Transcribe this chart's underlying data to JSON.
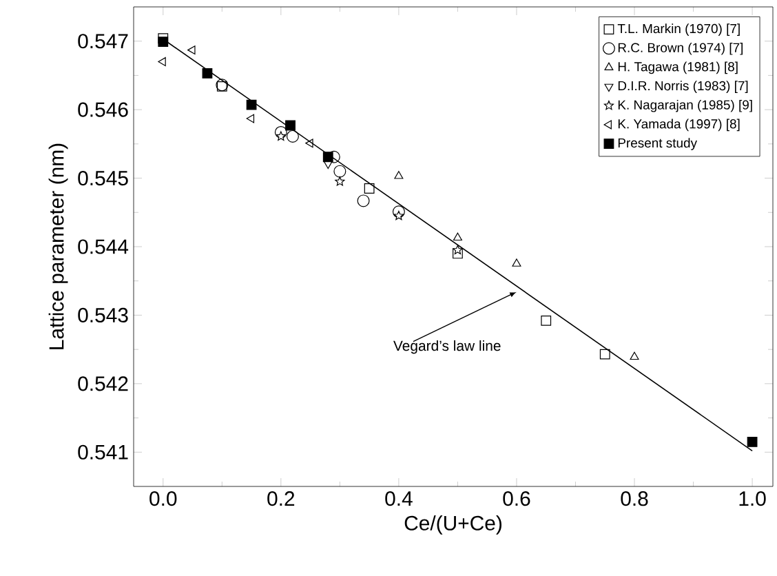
{
  "chart_data": {
    "type": "scatter",
    "xlabel": "Ce/(U+Ce)",
    "ylabel": "Lattice parameter (nm)",
    "xlim": [
      -0.05,
      1.035
    ],
    "ylim": [
      0.5405,
      0.5475
    ],
    "xticks": [
      {
        "value": 0,
        "label": "0.0"
      },
      0.2,
      0.4,
      0.6,
      0.8,
      {
        "value": 1,
        "label": "1.0"
      }
    ],
    "yticks": [
      0.541,
      0.542,
      0.543,
      0.544,
      0.545,
      0.546,
      0.547
    ],
    "legend": "top right",
    "grid": false,
    "series": [
      {
        "type": "line",
        "color": "#000000",
        "marker": "none",
        "line_style": "solid",
        "x": [
          0,
          1
        ],
        "values": [
          0.54703,
          0.54102
        ]
      },
      {
        "name": "T.L. Markin (1970) [7]",
        "color": "#000000",
        "marker": "square",
        "x": [
          0,
          0.1,
          0.35,
          0.5,
          0.65,
          0.75
        ],
        "values": [
          0.54704,
          0.54634,
          0.54485,
          0.5439,
          0.54292,
          0.54243
        ]
      },
      {
        "name": "R.C. Brown (1974) [7]",
        "color": "#000000",
        "marker": "circle",
        "x": [
          0.1,
          0.2,
          0.22,
          0.29,
          0.3,
          0.34,
          0.4
        ],
        "values": [
          0.54636,
          0.54567,
          0.54561,
          0.54531,
          0.5451,
          0.54467,
          0.54451
        ]
      },
      {
        "name": "H. Tagawa (1981) [8]",
        "color": "#000000",
        "marker": "triangle",
        "x": [
          0.4,
          0.5,
          0.6,
          0.8
        ],
        "values": [
          0.54503,
          0.54413,
          0.54375,
          0.54239
        ]
      },
      {
        "name": "D.I.R. Norris (1983) [7]",
        "color": "#000000",
        "marker": "triangle-down",
        "x": [
          0.28
        ],
        "values": [
          0.54521
        ]
      },
      {
        "name": "K. Nagarajan (1985) [9]",
        "color": "#000000",
        "marker": "star",
        "x": [
          0.2,
          0.3,
          0.4,
          0.5
        ],
        "values": [
          0.54561,
          0.54495,
          0.54445,
          0.54395
        ]
      },
      {
        "name": "K. Yamada (1997) [8]",
        "color": "#000000",
        "marker": "triangle-left",
        "x": [
          0,
          0.05,
          0.15,
          0.25
        ],
        "values": [
          0.5467,
          0.54687,
          0.54587,
          0.54551
        ]
      },
      {
        "name": "Present study",
        "color": "#000000",
        "marker": "square-filled",
        "x": [
          0,
          0.075,
          0.15,
          0.216,
          0.28,
          1.0
        ],
        "values": [
          0.54699,
          0.54653,
          0.54607,
          0.54577,
          0.54531,
          0.54115
        ]
      }
    ],
    "annotations": [
      {
        "text": "Vegard’s law line",
        "x": 0.6,
        "y": 0.54334
      }
    ]
  }
}
